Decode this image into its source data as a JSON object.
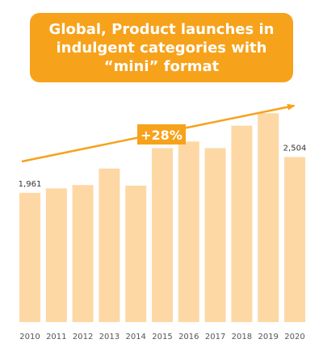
{
  "chart_data": {
    "type": "bar",
    "title": "Global, Product launches in\nindulgent categories with\n“mini” format",
    "categories": [
      "2010",
      "2011",
      "2012",
      "2013",
      "2014",
      "2015",
      "2016",
      "2017",
      "2018",
      "2019",
      "2020"
    ],
    "values": [
      1961,
      2030,
      2080,
      2330,
      2070,
      2640,
      2740,
      2640,
      2980,
      3170,
      2504
    ],
    "data_labels": {
      "2010": "1,961",
      "2020": "2,504"
    },
    "annotation": "+28%",
    "grid": false,
    "legend": "none",
    "ylim": [
      0,
      3540
    ],
    "colors": {
      "bar": "#fdd8a5",
      "accent": "#f7a21b",
      "text": "#333333",
      "axis_text": "#555555"
    }
  }
}
